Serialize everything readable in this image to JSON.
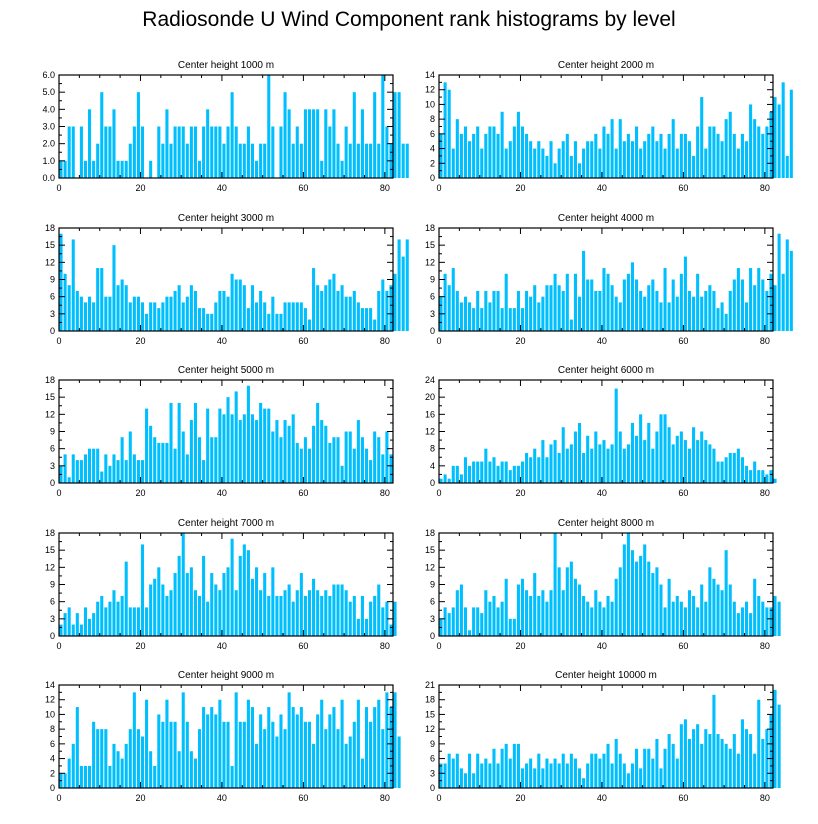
{
  "title": "Radiosonde U Wind Component rank histograms by level",
  "colors": {
    "bar": "#00bfff",
    "axis": "#000000",
    "bar_edge": "#ffffff"
  },
  "chart_data": [
    {
      "type": "bar",
      "title": "Center height 1000 m",
      "xlim": [
        0,
        82
      ],
      "ylim": [
        0,
        6
      ],
      "xticks": [
        0,
        20,
        40,
        60,
        80
      ],
      "xtick_labels": [
        "0",
        "20",
        "40",
        "60",
        "80"
      ],
      "yticks": [
        0,
        1,
        2,
        3,
        4,
        5,
        6
      ],
      "ytick_labels": [
        "0.0",
        "1.0",
        "2.0",
        "3.0",
        "4.0",
        "5.0",
        "6.0"
      ],
      "values": [
        1,
        1,
        3,
        3,
        0,
        3,
        1,
        4,
        1,
        2,
        5,
        3,
        3,
        4,
        1,
        1,
        1,
        2,
        3,
        5,
        3,
        0,
        1,
        0,
        3,
        2,
        4,
        2,
        3,
        3,
        3,
        2,
        3,
        3,
        1,
        3,
        4,
        3,
        3,
        3,
        2,
        3,
        5,
        3,
        2,
        2,
        3,
        2,
        1,
        2,
        2,
        6,
        3,
        0,
        3,
        5,
        4,
        2,
        3,
        2,
        4,
        4,
        4,
        4,
        1,
        4,
        3,
        4,
        2,
        1,
        3,
        2,
        5,
        2,
        4,
        2,
        2,
        5,
        2,
        6,
        3,
        2,
        5,
        5,
        2,
        2
      ]
    },
    {
      "type": "bar",
      "title": "Center height 2000 m",
      "xlim": [
        0,
        82
      ],
      "ylim": [
        0,
        14
      ],
      "xticks": [
        0,
        20,
        40,
        60,
        80
      ],
      "xtick_labels": [
        "0",
        "20",
        "40",
        "60",
        "80"
      ],
      "yticks": [
        0,
        2,
        4,
        6,
        8,
        10,
        12,
        14
      ],
      "ytick_labels": [
        "0",
        "2",
        "4",
        "6",
        "8",
        "10",
        "12",
        "14"
      ],
      "values": [
        6,
        13,
        12,
        4,
        8,
        6,
        7,
        5,
        6,
        7,
        4,
        6,
        7,
        7,
        6,
        9,
        4,
        5,
        7,
        9,
        7,
        6,
        5,
        4,
        5,
        4,
        3,
        5,
        2,
        4,
        5,
        6,
        3,
        5,
        2,
        4,
        5,
        5,
        6,
        4,
        7,
        6,
        8,
        4,
        8,
        5,
        6,
        5,
        7,
        4,
        5,
        6,
        7,
        5,
        6,
        4,
        6,
        8,
        4,
        6,
        6,
        5,
        3,
        7,
        11,
        4,
        7,
        7,
        6,
        5,
        8,
        9,
        6,
        4,
        6,
        5,
        10,
        8,
        7,
        6,
        7,
        9,
        11,
        10,
        13,
        3,
        12
      ]
    },
    {
      "type": "bar",
      "title": "Center height 3000 m",
      "xlim": [
        0,
        82
      ],
      "ylim": [
        0,
        18
      ],
      "xticks": [
        0,
        20,
        40,
        60,
        80
      ],
      "xtick_labels": [
        "0",
        "20",
        "40",
        "60",
        "80"
      ],
      "yticks": [
        0,
        3,
        6,
        9,
        12,
        15,
        18
      ],
      "ytick_labels": [
        "0",
        "3",
        "6",
        "9",
        "12",
        "15",
        "18"
      ],
      "values": [
        17,
        10,
        8,
        16,
        7,
        6,
        5,
        6,
        5,
        11,
        11,
        6,
        6,
        15,
        8,
        9,
        8,
        5,
        6,
        6,
        5,
        3,
        5,
        5,
        4,
        5,
        6,
        6,
        7,
        8,
        5,
        6,
        8,
        7,
        4,
        4,
        3,
        3,
        5,
        7,
        7,
        6,
        10,
        9,
        9,
        8,
        4,
        8,
        5,
        7,
        5,
        3,
        6,
        3,
        3,
        5,
        5,
        5,
        5,
        5,
        4,
        2,
        11,
        8,
        7,
        8,
        9,
        10,
        7,
        8,
        6,
        6,
        7,
        5,
        4,
        4,
        4,
        2,
        7,
        9,
        7,
        8,
        10,
        16,
        13,
        16
      ]
    },
    {
      "type": "bar",
      "title": "Center height 4000 m",
      "xlim": [
        0,
        82
      ],
      "ylim": [
        0,
        18
      ],
      "xticks": [
        0,
        20,
        40,
        60,
        80
      ],
      "xtick_labels": [
        "0",
        "20",
        "40",
        "60",
        "80"
      ],
      "yticks": [
        0,
        3,
        6,
        9,
        12,
        15,
        18
      ],
      "ytick_labels": [
        "0",
        "3",
        "6",
        "9",
        "12",
        "15",
        "18"
      ],
      "values": [
        6,
        10,
        8,
        11,
        7,
        5,
        6,
        5,
        4,
        7,
        4,
        7,
        5,
        7,
        7,
        4,
        10,
        4,
        4,
        7,
        4,
        7,
        6,
        8,
        5,
        6,
        8,
        8,
        10,
        8,
        7,
        10,
        2,
        10,
        6,
        14,
        9,
        9,
        7,
        7,
        11,
        10,
        8,
        6,
        5,
        9,
        10,
        12,
        9,
        7,
        6,
        8,
        9,
        7,
        5,
        11,
        5,
        9,
        6,
        10,
        13,
        7,
        6,
        10,
        6,
        7,
        8,
        7,
        4,
        5,
        3,
        7,
        9,
        11,
        9,
        5,
        11,
        8,
        11,
        9,
        7,
        10,
        8,
        17,
        10,
        16,
        14
      ]
    },
    {
      "type": "bar",
      "title": "Center height 5000 m",
      "xlim": [
        0,
        82
      ],
      "ylim": [
        0,
        18
      ],
      "xticks": [
        0,
        20,
        40,
        60,
        80
      ],
      "xtick_labels": [
        "0",
        "20",
        "40",
        "60",
        "80"
      ],
      "yticks": [
        0,
        3,
        6,
        9,
        12,
        15,
        18
      ],
      "ytick_labels": [
        "0",
        "3",
        "6",
        "9",
        "12",
        "15",
        "18"
      ],
      "values": [
        3,
        5,
        1,
        5,
        4,
        4,
        5,
        6,
        6,
        6,
        2,
        5,
        3,
        5,
        4,
        8,
        4,
        9,
        5,
        4,
        4,
        13,
        10,
        8,
        7,
        7,
        7,
        14,
        6,
        14,
        9,
        5,
        11,
        14,
        8,
        4,
        13,
        8,
        8,
        13,
        12,
        15,
        12,
        16,
        11,
        12,
        17,
        12,
        11,
        14,
        13,
        13,
        9,
        11,
        8,
        11,
        10,
        12,
        7,
        6,
        8,
        6,
        10,
        14,
        11,
        10,
        7,
        8,
        8,
        3,
        9,
        9,
        6,
        11,
        8,
        6,
        4,
        9,
        8,
        5,
        9,
        5
      ]
    },
    {
      "type": "bar",
      "title": "Center height 6000 m",
      "xlim": [
        0,
        82
      ],
      "ylim": [
        0,
        24
      ],
      "xticks": [
        0,
        20,
        40,
        60,
        80
      ],
      "xtick_labels": [
        "0",
        "20",
        "40",
        "60",
        "80"
      ],
      "yticks": [
        0,
        4,
        8,
        12,
        16,
        20,
        24
      ],
      "ytick_labels": [
        "0",
        "4",
        "8",
        "12",
        "16",
        "20",
        "24"
      ],
      "values": [
        1,
        2,
        1,
        4,
        4,
        2,
        6,
        4,
        5,
        5,
        5,
        8,
        5,
        6,
        4,
        5,
        5,
        3,
        4,
        4,
        5,
        7,
        6,
        8,
        6,
        10,
        6,
        9,
        10,
        7,
        13,
        8,
        9,
        12,
        14,
        7,
        11,
        8,
        12,
        9,
        10,
        8,
        9,
        22,
        12,
        8,
        9,
        14,
        11,
        16,
        10,
        14,
        8,
        12,
        16,
        16,
        13,
        9,
        11,
        12,
        10,
        8,
        13,
        10,
        12,
        10,
        9,
        8,
        5,
        5,
        6,
        7,
        7,
        8,
        6,
        4,
        3,
        5,
        3,
        3,
        2,
        3,
        1
      ]
    },
    {
      "type": "bar",
      "title": "Center height 7000 m",
      "xlim": [
        0,
        82
      ],
      "ylim": [
        0,
        18
      ],
      "xticks": [
        0,
        20,
        40,
        60,
        80
      ],
      "xtick_labels": [
        "0",
        "20",
        "40",
        "60",
        "80"
      ],
      "yticks": [
        0,
        3,
        6,
        9,
        12,
        15,
        18
      ],
      "ytick_labels": [
        "0",
        "3",
        "6",
        "9",
        "12",
        "15",
        "18"
      ],
      "values": [
        2,
        4,
        5,
        2,
        4,
        2,
        5,
        3,
        4,
        6,
        7,
        5,
        6,
        8,
        6,
        7,
        13,
        5,
        5,
        5,
        16,
        5,
        9,
        10,
        12,
        9,
        7,
        8,
        11,
        14,
        18,
        11,
        12,
        8,
        7,
        14,
        6,
        11,
        9,
        8,
        11,
        12,
        17,
        8,
        14,
        16,
        15,
        10,
        12,
        8,
        11,
        7,
        12,
        7,
        7,
        8,
        9,
        6,
        8,
        11,
        7,
        8,
        10,
        8,
        7,
        8,
        7,
        9,
        9,
        9,
        8,
        6,
        7,
        3,
        7,
        3,
        6,
        7,
        9,
        5,
        6,
        2,
        6
      ]
    },
    {
      "type": "bar",
      "title": "Center height 8000 m",
      "xlim": [
        0,
        82
      ],
      "ylim": [
        0,
        18
      ],
      "xticks": [
        0,
        20,
        40,
        60,
        80
      ],
      "xtick_labels": [
        "0",
        "20",
        "40",
        "60",
        "80"
      ],
      "yticks": [
        0,
        3,
        6,
        9,
        12,
        15,
        18
      ],
      "ytick_labels": [
        "0",
        "3",
        "6",
        "9",
        "12",
        "15",
        "18"
      ],
      "values": [
        3,
        5,
        4,
        5,
        8,
        9,
        5,
        1,
        5,
        5,
        4,
        8,
        6,
        7,
        5,
        6,
        10,
        3,
        3,
        9,
        10,
        8,
        7,
        11,
        7,
        8,
        6,
        8,
        18,
        12,
        8,
        12,
        13,
        10,
        9,
        7,
        6,
        5,
        8,
        6,
        5,
        7,
        6,
        10,
        12,
        16,
        18,
        15,
        13,
        14,
        16,
        13,
        11,
        12,
        9,
        5,
        10,
        6,
        7,
        6,
        5,
        8,
        7,
        5,
        9,
        6,
        12,
        10,
        9,
        8,
        15,
        9,
        6,
        4,
        5,
        6,
        4,
        10,
        7,
        6,
        5,
        5,
        7,
        6
      ]
    },
    {
      "type": "bar",
      "title": "Center height 9000 m",
      "xlim": [
        0,
        82
      ],
      "ylim": [
        0,
        14
      ],
      "xticks": [
        0,
        20,
        40,
        60,
        80
      ],
      "xtick_labels": [
        "0",
        "20",
        "40",
        "60",
        "80"
      ],
      "yticks": [
        0,
        2,
        4,
        6,
        8,
        10,
        12,
        14
      ],
      "ytick_labels": [
        "0",
        "2",
        "4",
        "6",
        "8",
        "10",
        "12",
        "14"
      ],
      "values": [
        2,
        2,
        4,
        6,
        11,
        3,
        3,
        3,
        9,
        8,
        8,
        8,
        3,
        6,
        5,
        4,
        6,
        8,
        13,
        8,
        7,
        12,
        5,
        3,
        10,
        9,
        12,
        9,
        9,
        5,
        13,
        9,
        5,
        4,
        8,
        11,
        10,
        11,
        10,
        12,
        9,
        9,
        3,
        13,
        9,
        9,
        12,
        11,
        6,
        10,
        8,
        11,
        9,
        7,
        10,
        8,
        13,
        11,
        10,
        11,
        9,
        9,
        6,
        10,
        12,
        8,
        10,
        11,
        8,
        12,
        6,
        7,
        9,
        12,
        4,
        11,
        9,
        11,
        12,
        8,
        13,
        11,
        13,
        7
      ]
    },
    {
      "type": "bar",
      "title": "Center height 10000 m",
      "xlim": [
        0,
        82
      ],
      "ylim": [
        0,
        21
      ],
      "xticks": [
        0,
        20,
        40,
        60,
        80
      ],
      "xtick_labels": [
        "0",
        "20",
        "40",
        "60",
        "80"
      ],
      "yticks": [
        0,
        3,
        6,
        9,
        12,
        15,
        18,
        21
      ],
      "ytick_labels": [
        "0",
        "3",
        "6",
        "9",
        "12",
        "15",
        "18",
        "21"
      ],
      "values": [
        5,
        5,
        7,
        6,
        7,
        4,
        3,
        7,
        3,
        7,
        5,
        6,
        5,
        8,
        5,
        8,
        9,
        6,
        9,
        9,
        4,
        5,
        6,
        4,
        7,
        4,
        6,
        5,
        6,
        5,
        7,
        5,
        7,
        6,
        4,
        2,
        5,
        7,
        7,
        6,
        7,
        9,
        5,
        10,
        7,
        5,
        3,
        5,
        8,
        4,
        8,
        8,
        6,
        10,
        4,
        8,
        11,
        9,
        6,
        13,
        14,
        10,
        12,
        13,
        9,
        12,
        11,
        19,
        11,
        10,
        9,
        8,
        11,
        7,
        14,
        12,
        11,
        7,
        18,
        10,
        12,
        15,
        20,
        17
      ]
    }
  ]
}
